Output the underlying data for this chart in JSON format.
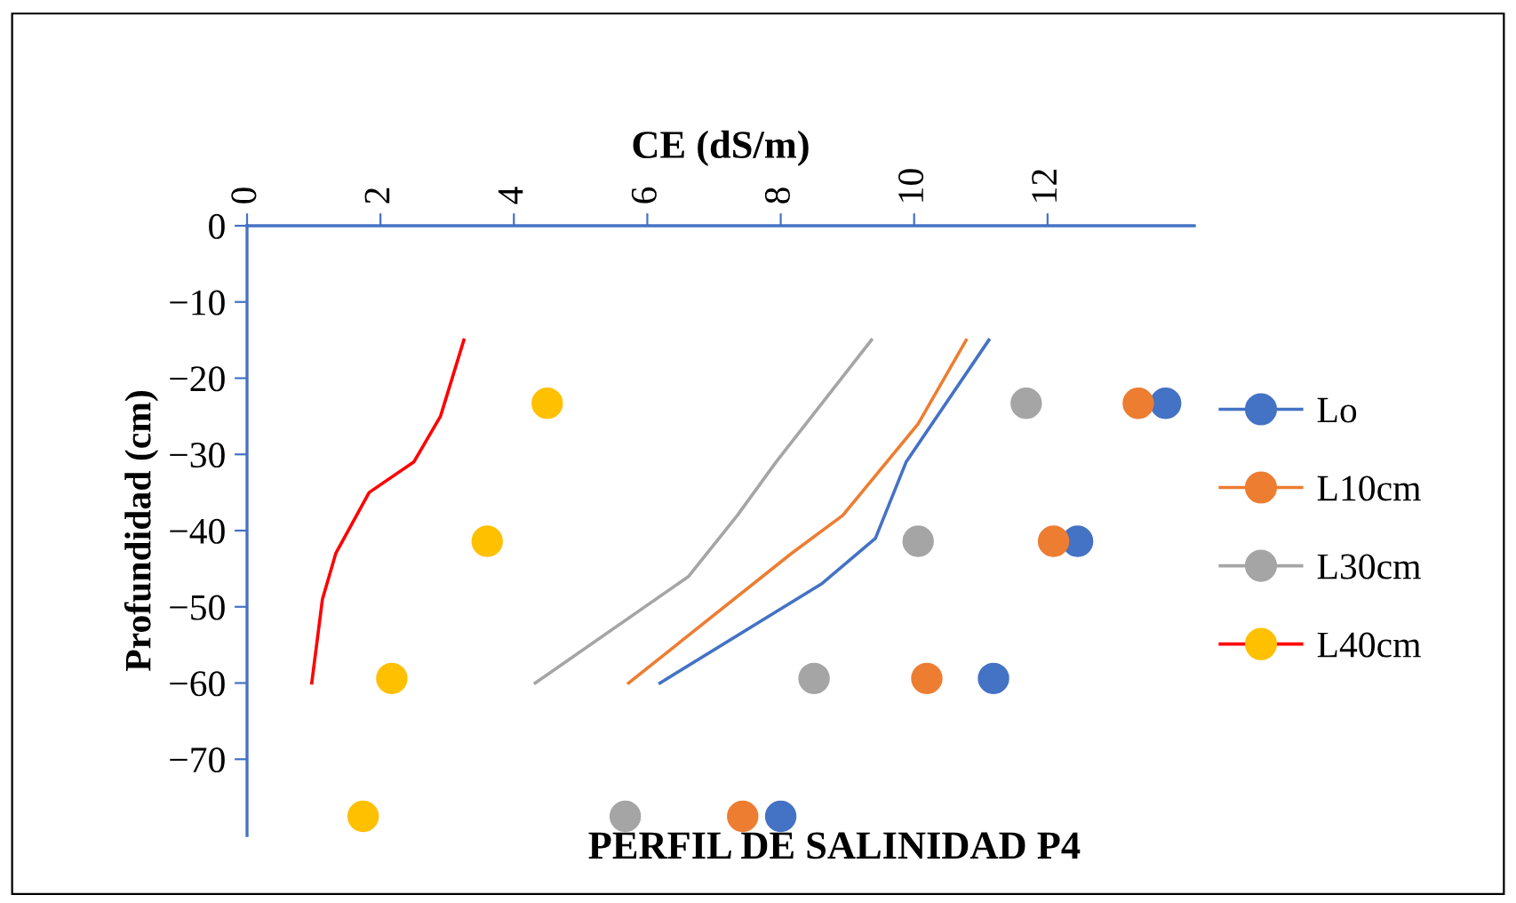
{
  "chart_data": {
    "type": "scatter",
    "title": "PERFIL DE SALINIDAD P4",
    "xlabel": "CE (dS/m)",
    "ylabel": "Profundidad (cm)",
    "xlim": [
      0,
      14.2
    ],
    "xticks": [
      0,
      2,
      4,
      6,
      8,
      10,
      12
    ],
    "ylim": [
      -80,
      0
    ],
    "yticks": [
      0,
      -10,
      -20,
      -30,
      -40,
      -50,
      -60,
      -70
    ],
    "grid": false,
    "legend": "right",
    "series": [
      {
        "name": "Lo",
        "marker": "circle",
        "color": "#4472c4",
        "x": [
          13.77,
          12.45,
          11.19,
          8.0
        ],
        "values": [
          -23.3,
          -41.4,
          -59.4,
          -77.5
        ]
      },
      {
        "name": "L10cm",
        "marker": "circle",
        "color": "#ed7d31",
        "x": [
          13.36,
          12.09,
          10.19,
          7.43
        ],
        "values": [
          -23.3,
          -41.4,
          -59.4,
          -77.5
        ]
      },
      {
        "name": "L30cm",
        "marker": "circle",
        "color": "#a5a5a5",
        "x": [
          11.68,
          10.06,
          8.5,
          5.67
        ],
        "values": [
          -23.3,
          -41.4,
          -59.4,
          -77.5
        ]
      },
      {
        "name": "L40cm",
        "marker": "circle",
        "color": "#ffc000",
        "x": [
          4.5,
          3.6,
          2.17,
          1.74
        ],
        "values": [
          -23.3,
          -41.4,
          -59.4,
          -77.5
        ]
      },
      {
        "type": "line",
        "color": "#4472c4",
        "x": [
          11.12,
          9.88,
          9.42,
          8.61,
          6.19
        ],
        "values": [
          -15,
          -31,
          -41,
          -47,
          -60
        ]
      },
      {
        "type": "line",
        "color": "#ed7d31",
        "x": [
          10.78,
          10.06,
          8.93,
          8.16,
          5.72
        ],
        "values": [
          -15,
          -26,
          -38,
          -43,
          -60
        ]
      },
      {
        "type": "line",
        "color": "#a5a5a5",
        "x": [
          9.36,
          7.93,
          7.35,
          6.62,
          4.32
        ],
        "values": [
          -15,
          -31,
          -38,
          -46,
          -60
        ]
      },
      {
        "type": "line",
        "color": "#ff0000",
        "x": [
          3.25,
          2.9,
          2.5,
          1.83,
          1.33,
          1.13,
          0.97
        ],
        "values": [
          -15,
          -25,
          -31,
          -35,
          -43,
          -49,
          -60
        ]
      }
    ]
  }
}
